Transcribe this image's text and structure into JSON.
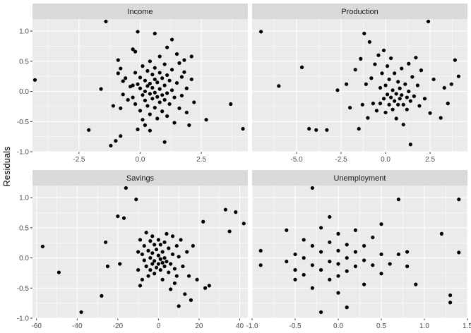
{
  "ylabel": "Residuals",
  "colors": {
    "panel_background": "#ebebeb",
    "grid_major": "#ffffff",
    "strip_background": "#d9d9d9",
    "point": "#000000"
  },
  "chart_data": {
    "type": "scatter",
    "ylabel": "Residuals",
    "ylim": [
      -1.0,
      1.2
    ],
    "y_ticks": [
      -1.0,
      -0.5,
      0.0,
      0.5,
      1.0
    ],
    "y_tick_labels": [
      "-1.0",
      "-0.5",
      "0.0",
      "0.5",
      "1.0"
    ],
    "grid": true,
    "facets": [
      {
        "name": "Income",
        "xlim": [
          -4.4,
          4.4
        ],
        "x_ticks": [
          -2.5,
          0,
          2.5
        ],
        "x_tick_labels": [
          "-2.5",
          "0.0",
          "2.5"
        ],
        "points": [
          [
            -4.3,
            0.19
          ],
          [
            -2.1,
            -0.64
          ],
          [
            -1.6,
            0.04
          ],
          [
            -1.4,
            1.16
          ],
          [
            -1.2,
            -0.9
          ],
          [
            -1.1,
            -0.24
          ],
          [
            -1.0,
            -0.82
          ],
          [
            -0.9,
            0.3
          ],
          [
            -0.9,
            0.52
          ],
          [
            -0.8,
            0.38
          ],
          [
            -0.8,
            -0.28
          ],
          [
            -0.8,
            -0.74
          ],
          [
            -0.7,
            0.17
          ],
          [
            -0.7,
            -0.05
          ],
          [
            -0.6,
            0.22
          ],
          [
            -0.5,
            -0.14
          ],
          [
            -0.4,
            0.08
          ],
          [
            -0.3,
            0.7
          ],
          [
            -0.3,
            0.1
          ],
          [
            -0.3,
            -0.1
          ],
          [
            -0.2,
            0.66
          ],
          [
            -0.2,
            0.31
          ],
          [
            -0.2,
            -0.21
          ],
          [
            -0.1,
            0.99
          ],
          [
            -0.1,
            0.12
          ],
          [
            -0.1,
            -0.63
          ],
          [
            0.0,
            0.23
          ],
          [
            0.0,
            0.05
          ],
          [
            0.0,
            -0.32
          ],
          [
            0.1,
            0.42
          ],
          [
            0.1,
            -0.06
          ],
          [
            0.1,
            -0.47
          ],
          [
            0.2,
            0.18
          ],
          [
            0.2,
            0.0
          ],
          [
            0.2,
            -0.15
          ],
          [
            0.2,
            -0.56
          ],
          [
            0.3,
            0.34
          ],
          [
            0.3,
            0.09
          ],
          [
            0.3,
            -0.24
          ],
          [
            0.4,
            0.5
          ],
          [
            0.4,
            0.13
          ],
          [
            0.4,
            -0.04
          ],
          [
            0.4,
            -0.38
          ],
          [
            0.4,
            -0.65
          ],
          [
            0.5,
            0.28
          ],
          [
            0.5,
            0.06
          ],
          [
            0.5,
            -0.12
          ],
          [
            0.6,
            0.96
          ],
          [
            0.6,
            0.39
          ],
          [
            0.6,
            0.2
          ],
          [
            0.6,
            -0.02
          ],
          [
            0.6,
            -0.27
          ],
          [
            0.7,
            0.15
          ],
          [
            0.7,
            -0.09
          ],
          [
            0.7,
            -0.45
          ],
          [
            0.8,
            0.58
          ],
          [
            0.8,
            0.31
          ],
          [
            0.8,
            0.04
          ],
          [
            0.8,
            -0.18
          ],
          [
            0.9,
            0.22
          ],
          [
            0.9,
            -0.06
          ],
          [
            0.9,
            -0.33
          ],
          [
            1.0,
            0.45
          ],
          [
            1.0,
            0.1
          ],
          [
            1.0,
            -0.14
          ],
          [
            1.0,
            -0.84
          ],
          [
            1.1,
            0.73
          ],
          [
            1.1,
            0.27
          ],
          [
            1.1,
            -0.03
          ],
          [
            1.1,
            -0.41
          ],
          [
            1.2,
            0.18
          ],
          [
            1.2,
            -0.21
          ],
          [
            1.3,
            0.86
          ],
          [
            1.3,
            0.36
          ],
          [
            1.3,
            0.02
          ],
          [
            1.4,
            -0.1
          ],
          [
            1.4,
            -0.52
          ],
          [
            1.5,
            0.62
          ],
          [
            1.5,
            0.14
          ],
          [
            1.6,
            0.47
          ],
          [
            1.6,
            -0.28
          ],
          [
            1.7,
            0.24
          ],
          [
            1.7,
            -0.07
          ],
          [
            1.8,
            0.52
          ],
          [
            1.8,
            0.32
          ],
          [
            1.9,
            0.05
          ],
          [
            1.9,
            -0.35
          ],
          [
            2.0,
            -0.56
          ],
          [
            2.1,
            0.58
          ],
          [
            2.1,
            0.2
          ],
          [
            2.2,
            -0.18
          ],
          [
            2.7,
            -0.47
          ],
          [
            3.7,
            -0.21
          ],
          [
            4.2,
            -0.62
          ]
        ]
      },
      {
        "name": "Production",
        "xlim": [
          -7.5,
          4.6
        ],
        "x_ticks": [
          -5,
          -2.5,
          0,
          2.5
        ],
        "x_tick_labels": [
          "-5.0",
          "-2.5",
          "0.0",
          "2.5"
        ],
        "points": [
          [
            -7.0,
            0.99
          ],
          [
            -6.0,
            0.09
          ],
          [
            -4.7,
            0.4
          ],
          [
            -4.3,
            -0.62
          ],
          [
            -3.9,
            -0.64
          ],
          [
            -3.3,
            -0.64
          ],
          [
            -2.7,
            0.02
          ],
          [
            -2.2,
            0.12
          ],
          [
            -2.0,
            -0.27
          ],
          [
            -1.7,
            0.36
          ],
          [
            -1.5,
            -0.62
          ],
          [
            -1.4,
            0.54
          ],
          [
            -1.3,
            -0.22
          ],
          [
            -1.2,
            0.96
          ],
          [
            -1.1,
            0.12
          ],
          [
            -1.0,
            -0.44
          ],
          [
            -0.9,
            0.82
          ],
          [
            -0.8,
            0.22
          ],
          [
            -0.7,
            -0.2
          ],
          [
            -0.6,
            0.45
          ],
          [
            -0.5,
            -0.32
          ],
          [
            -0.4,
            0.6
          ],
          [
            -0.3,
            0.06
          ],
          [
            -0.3,
            -0.2
          ],
          [
            -0.2,
            0.3
          ],
          [
            -0.1,
            0.68
          ],
          [
            -0.1,
            -0.12
          ],
          [
            0.0,
            0.1
          ],
          [
            0.0,
            -0.35
          ],
          [
            0.1,
            0.42
          ],
          [
            0.1,
            -0.05
          ],
          [
            0.2,
            0.2
          ],
          [
            0.2,
            -0.22
          ],
          [
            0.3,
            0.55
          ],
          [
            0.3,
            -0.1
          ],
          [
            0.4,
            0.02
          ],
          [
            0.4,
            -0.3
          ],
          [
            0.5,
            0.3
          ],
          [
            0.5,
            -0.16
          ],
          [
            0.6,
            -0.04
          ],
          [
            0.6,
            -0.45
          ],
          [
            0.7,
            0.16
          ],
          [
            0.7,
            -0.22
          ],
          [
            0.8,
            0.05
          ],
          [
            0.8,
            -0.12
          ],
          [
            0.9,
            0.38
          ],
          [
            0.9,
            -0.06
          ],
          [
            1.0,
            -0.22
          ],
          [
            1.0,
            -0.55
          ],
          [
            1.1,
            0.12
          ],
          [
            1.2,
            -0.1
          ],
          [
            1.2,
            -0.3
          ],
          [
            1.3,
            0.46
          ],
          [
            1.3,
            0.0
          ],
          [
            1.4,
            -0.88
          ],
          [
            1.4,
            -0.16
          ],
          [
            1.5,
            0.24
          ],
          [
            1.6,
            -0.08
          ],
          [
            1.7,
            0.56
          ],
          [
            1.8,
            0.1
          ],
          [
            1.9,
            -0.24
          ],
          [
            2.0,
            0.35
          ],
          [
            2.2,
            -0.12
          ],
          [
            2.4,
            1.16
          ],
          [
            2.5,
            -0.36
          ],
          [
            2.7,
            0.2
          ],
          [
            3.1,
            -0.44
          ],
          [
            3.3,
            0.06
          ],
          [
            3.5,
            -0.2
          ],
          [
            3.7,
            0.12
          ],
          [
            3.9,
            0.52
          ],
          [
            4.1,
            0.25
          ]
        ]
      },
      {
        "name": "Savings",
        "xlim": [
          -62,
          44
        ],
        "x_ticks": [
          -60,
          -40,
          -20,
          0,
          20,
          40
        ],
        "x_tick_labels": [
          "-60",
          "-40",
          "-20",
          "0",
          "20",
          "40"
        ],
        "points": [
          [
            -57,
            0.19
          ],
          [
            -49,
            -0.24
          ],
          [
            -38,
            -0.9
          ],
          [
            -28,
            -0.63
          ],
          [
            -26,
            0.26
          ],
          [
            -25,
            -0.14
          ],
          [
            -20,
            0.69
          ],
          [
            -19,
            -0.1
          ],
          [
            -17,
            0.66
          ],
          [
            -16,
            1.16
          ],
          [
            -11,
            0.97
          ],
          [
            -10,
            0.1
          ],
          [
            -10,
            -0.2
          ],
          [
            -9,
            0.3
          ],
          [
            -9,
            -0.46
          ],
          [
            -8,
            0.06
          ],
          [
            -8,
            -0.36
          ],
          [
            -7,
            0.2
          ],
          [
            -7,
            -0.04
          ],
          [
            -6,
            0.42
          ],
          [
            -6,
            -0.14
          ],
          [
            -5,
            0.12
          ],
          [
            -5,
            -0.3
          ],
          [
            -4,
            0.28
          ],
          [
            -4,
            0.0
          ],
          [
            -4,
            -0.2
          ],
          [
            -3,
            0.36
          ],
          [
            -3,
            0.08
          ],
          [
            -3,
            -0.1
          ],
          [
            -2,
            0.22
          ],
          [
            -2,
            -0.05
          ],
          [
            -2,
            -0.26
          ],
          [
            -1,
            0.14
          ],
          [
            -1,
            -0.16
          ],
          [
            0,
            0.3
          ],
          [
            0,
            0.04
          ],
          [
            0,
            -0.1
          ],
          [
            1,
            0.22
          ],
          [
            1,
            -0.02
          ],
          [
            1,
            -0.2
          ],
          [
            2,
            0.1
          ],
          [
            2,
            -0.08
          ],
          [
            2,
            -0.36
          ],
          [
            3,
            0.26
          ],
          [
            3,
            0.0
          ],
          [
            3,
            -0.14
          ],
          [
            4,
            0.4
          ],
          [
            4,
            -0.06
          ],
          [
            5,
            0.16
          ],
          [
            5,
            -0.24
          ],
          [
            6,
            -0.1
          ],
          [
            6,
            -0.52
          ],
          [
            7,
            0.36
          ],
          [
            7,
            0.06
          ],
          [
            8,
            -0.18
          ],
          [
            8,
            -0.42
          ],
          [
            9,
            0.2
          ],
          [
            9,
            -0.3
          ],
          [
            10,
            -0.8
          ],
          [
            10,
            0.02
          ],
          [
            11,
            0.3
          ],
          [
            12,
            -0.14
          ],
          [
            13,
            -0.6
          ],
          [
            14,
            0.1
          ],
          [
            15,
            -0.3
          ],
          [
            16,
            -0.7
          ],
          [
            17,
            0.2
          ],
          [
            19,
            -0.36
          ],
          [
            22,
            0.6
          ],
          [
            23,
            -0.5
          ],
          [
            25,
            -0.46
          ],
          [
            33,
            0.8
          ],
          [
            35,
            0.44
          ],
          [
            38,
            0.76
          ],
          [
            42,
            0.57
          ]
        ]
      },
      {
        "name": "Unemployment",
        "xlim": [
          -1.0,
          1.5
        ],
        "x_ticks": [
          -1.0,
          -0.5,
          0.0,
          0.5,
          1.0,
          1.5
        ],
        "x_tick_labels": [
          "-1.0",
          "-0.5",
          "0.0",
          "0.5",
          "1.0",
          "1.5"
        ],
        "points": [
          [
            -0.9,
            0.12
          ],
          [
            -0.9,
            -0.12
          ],
          [
            -0.6,
            0.46
          ],
          [
            -0.6,
            -0.06
          ],
          [
            -0.5,
            0.06
          ],
          [
            -0.5,
            -0.2
          ],
          [
            -0.5,
            -0.36
          ],
          [
            -0.4,
            0.3
          ],
          [
            -0.4,
            0.0
          ],
          [
            -0.4,
            -0.28
          ],
          [
            -0.3,
            1.16
          ],
          [
            -0.3,
            0.2
          ],
          [
            -0.3,
            -0.12
          ],
          [
            -0.3,
            -0.5
          ],
          [
            -0.2,
            0.5
          ],
          [
            -0.2,
            0.1
          ],
          [
            -0.2,
            -0.2
          ],
          [
            -0.2,
            -0.9
          ],
          [
            -0.1,
            0.68
          ],
          [
            -0.1,
            0.26
          ],
          [
            -0.1,
            -0.06
          ],
          [
            -0.1,
            -0.36
          ],
          [
            0.0,
            0.4
          ],
          [
            0.0,
            0.12
          ],
          [
            0.0,
            -0.1
          ],
          [
            0.0,
            -0.3
          ],
          [
            0.0,
            -0.58
          ],
          [
            0.1,
            0.22
          ],
          [
            0.1,
            0.0
          ],
          [
            0.1,
            -0.22
          ],
          [
            0.1,
            -0.82
          ],
          [
            0.2,
            0.46
          ],
          [
            0.2,
            0.1
          ],
          [
            0.2,
            -0.14
          ],
          [
            0.3,
            0.2
          ],
          [
            0.3,
            -0.04
          ],
          [
            0.3,
            -0.44
          ],
          [
            0.4,
            0.34
          ],
          [
            0.4,
            -0.12
          ],
          [
            0.5,
            0.56
          ],
          [
            0.5,
            0.06
          ],
          [
            0.5,
            -0.26
          ],
          [
            0.6,
            -0.1
          ],
          [
            0.7,
            0.97
          ],
          [
            0.7,
            0.06
          ],
          [
            0.8,
            0.1
          ],
          [
            0.8,
            -0.14
          ],
          [
            0.9,
            -0.44
          ],
          [
            1.2,
            0.4
          ],
          [
            1.3,
            -0.62
          ],
          [
            1.3,
            -0.74
          ],
          [
            1.4,
            0.97
          ],
          [
            1.4,
            0.09
          ]
        ]
      }
    ]
  }
}
